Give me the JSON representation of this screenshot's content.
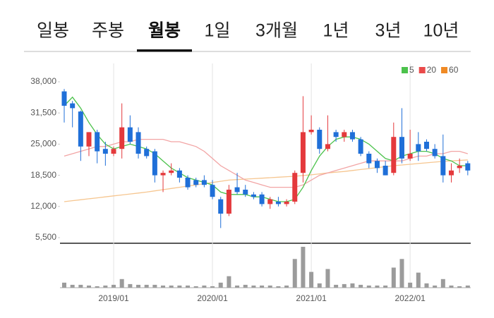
{
  "tabs": [
    "일봉",
    "주봉",
    "월봉",
    "1일",
    "3개월",
    "1년",
    "3년",
    "10년"
  ],
  "selected_tab": 2,
  "chart_data": {
    "type": "candlestick",
    "categories": [
      null,
      null,
      null,
      null,
      null,
      null,
      "2019/01",
      null,
      null,
      null,
      null,
      null,
      null,
      null,
      null,
      null,
      null,
      null,
      "2020/01",
      null,
      null,
      null,
      null,
      null,
      null,
      null,
      null,
      null,
      null,
      null,
      "2021/01",
      null,
      null,
      null,
      null,
      null,
      null,
      null,
      null,
      null,
      null,
      null,
      "2022/01",
      null,
      null,
      null,
      null,
      null,
      null,
      null
    ],
    "open": [
      36000,
      33500,
      31800,
      24500,
      27500,
      24000,
      23000,
      24000,
      28500,
      27500,
      24000,
      23500,
      18500,
      19000,
      19500,
      18000,
      17500,
      17500,
      16500,
      13500,
      10500,
      16000,
      15500,
      14500,
      14500,
      12500,
      13000,
      12500,
      13000,
      19000,
      27500,
      28000,
      24000,
      27500,
      26500,
      27500,
      26000,
      23000,
      21500,
      20500,
      19000,
      26500,
      22000,
      25000,
      25500,
      24000,
      22500,
      18500,
      20000,
      21000
    ],
    "high": [
      36500,
      34000,
      32000,
      27500,
      28000,
      25500,
      24500,
      33500,
      31000,
      28500,
      24500,
      24000,
      19500,
      21000,
      20000,
      18500,
      18000,
      18500,
      17500,
      14000,
      16500,
      19000,
      16500,
      15000,
      15000,
      14000,
      14000,
      13500,
      19500,
      35000,
      31000,
      28500,
      31000,
      28000,
      28000,
      28000,
      26500,
      23500,
      22000,
      21500,
      29500,
      32500,
      28000,
      27500,
      26000,
      25000,
      27000,
      21000,
      22000,
      21500
    ],
    "low": [
      29500,
      28500,
      21500,
      22500,
      21000,
      20500,
      22500,
      22000,
      25000,
      22000,
      22000,
      17000,
      15000,
      18500,
      17000,
      15500,
      16000,
      16000,
      13500,
      7500,
      10000,
      14500,
      14000,
      13500,
      12000,
      11500,
      12000,
      12000,
      12500,
      17000,
      27000,
      23000,
      23500,
      25500,
      25500,
      25500,
      22500,
      20000,
      19000,
      18500,
      18500,
      21000,
      21500,
      21500,
      23500,
      22000,
      17000,
      17000,
      19000,
      18500
    ],
    "close": [
      33000,
      32500,
      24500,
      27500,
      23500,
      23000,
      24000,
      28500,
      25500,
      23000,
      22500,
      18500,
      19000,
      19500,
      18000,
      16000,
      16500,
      16500,
      14000,
      10500,
      15500,
      15000,
      14500,
      14000,
      12500,
      13500,
      12500,
      13000,
      19000,
      27500,
      28000,
      24000,
      25000,
      26500,
      27500,
      26000,
      23000,
      21000,
      20000,
      18500,
      26500,
      22000,
      23000,
      23500,
      24000,
      22500,
      18500,
      19500,
      20500,
      19500
    ],
    "volume": [
      7,
      4,
      4,
      3,
      2,
      3,
      4,
      12,
      5,
      4,
      4,
      4,
      3,
      3,
      3,
      3,
      2,
      3,
      2,
      7,
      16,
      3,
      4,
      3,
      3,
      3,
      2,
      3,
      40,
      57,
      22,
      6,
      26,
      4,
      5,
      6,
      4,
      3,
      3,
      3,
      28,
      40,
      7,
      21,
      6,
      3,
      12,
      3,
      2,
      3
    ],
    "up_color": "#e4393c",
    "down_color": "#1f6fd8",
    "volume_color": "#9b9b9b",
    "series": [
      {
        "name": "5",
        "color": "#4cc24c",
        "values": [
          33000,
          34800,
          32500,
          29500,
          27000,
          25000,
          24000,
          24500,
          25000,
          24500,
          24000,
          23000,
          21500,
          20000,
          19000,
          18000,
          17500,
          17000,
          16500,
          15000,
          14500,
          14500,
          14500,
          14000,
          14000,
          13500,
          13000,
          13000,
          13500,
          16000,
          19500,
          22500,
          24500,
          26000,
          26500,
          26500,
          26000,
          25000,
          23500,
          22000,
          21500,
          22500,
          23000,
          23500,
          23500,
          23000,
          22000,
          21500,
          20500,
          20500
        ]
      },
      {
        "name": "20",
        "color": "#ea4a4a",
        "line_color": "#f2a5a5",
        "values": [
          22500,
          23000,
          23500,
          24000,
          24500,
          24500,
          25000,
          25500,
          25500,
          26000,
          26000,
          26000,
          26000,
          25500,
          25500,
          25000,
          24500,
          23500,
          22000,
          20500,
          19500,
          18500,
          17500,
          17000,
          16500,
          16000,
          16000,
          16000,
          16000,
          16500,
          17500,
          18500,
          19000,
          19500,
          20000,
          20500,
          21000,
          21500,
          21500,
          21500,
          21500,
          21500,
          22000,
          22500,
          22500,
          23000,
          23000,
          23500,
          23500,
          23000
        ]
      },
      {
        "name": "60",
        "color": "#f08a24",
        "line_color": "#f6c690",
        "values": [
          13000,
          13200,
          13400,
          13600,
          13800,
          14000,
          14200,
          14400,
          14600,
          14800,
          15000,
          15250,
          15500,
          15750,
          16000,
          16250,
          16500,
          16750,
          17000,
          17250,
          17500,
          17600,
          17700,
          17800,
          17900,
          18000,
          18100,
          18200,
          18300,
          18450,
          18600,
          18800,
          19000,
          19150,
          19300,
          19500,
          19700,
          19900,
          20100,
          20300,
          20500,
          20650,
          20800,
          20950,
          21100,
          21250,
          21400,
          21500,
          21600,
          21700
        ]
      }
    ],
    "ylim": [
      5500,
      38000
    ],
    "yticks": [
      {
        "value": 38000,
        "label": "38,000"
      },
      {
        "value": 31500,
        "label": "31,500"
      },
      {
        "value": 25000,
        "label": "25,000"
      },
      {
        "value": 18500,
        "label": "18,500"
      },
      {
        "value": 12000,
        "label": "12,000"
      },
      {
        "value": 5500,
        "label": "5,500"
      }
    ],
    "grid": true
  }
}
